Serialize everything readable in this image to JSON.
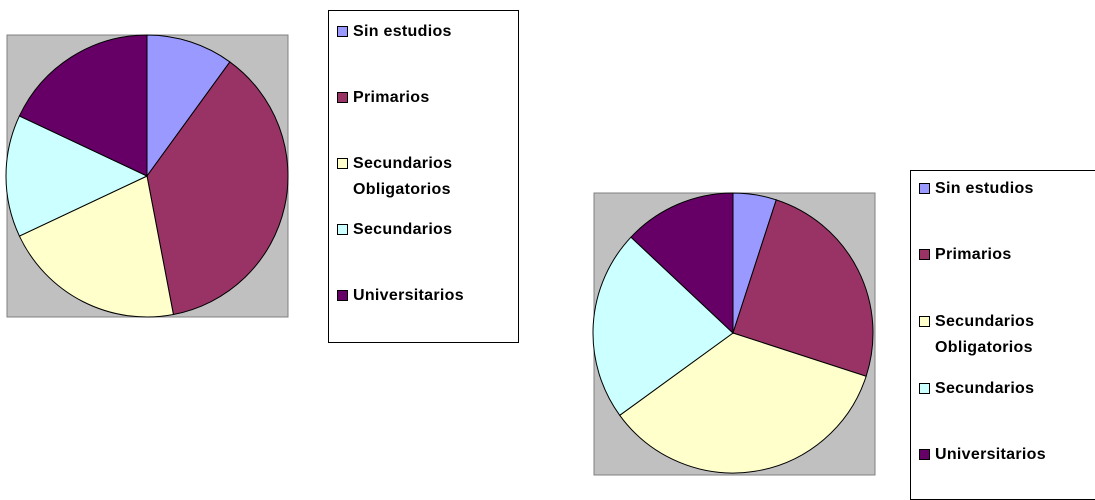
{
  "chart_data": [
    {
      "type": "pie",
      "categories": [
        "Sin estudios",
        "Primarios",
        "Secundarios Obligatorios",
        "Secundarios",
        "Universitarios"
      ],
      "values": [
        10,
        37,
        21,
        14,
        18
      ],
      "colors": [
        "#9999ff",
        "#993366",
        "#ffffcc",
        "#ccffff",
        "#660066"
      ]
    },
    {
      "type": "pie",
      "categories": [
        "Sin estudios",
        "Primarios",
        "Secundarios Obligatorios",
        "Secundarios",
        "Universitarios"
      ],
      "values": [
        5,
        25,
        35,
        22,
        13
      ],
      "colors": [
        "#9999ff",
        "#993366",
        "#ffffcc",
        "#ccffff",
        "#660066"
      ]
    }
  ]
}
